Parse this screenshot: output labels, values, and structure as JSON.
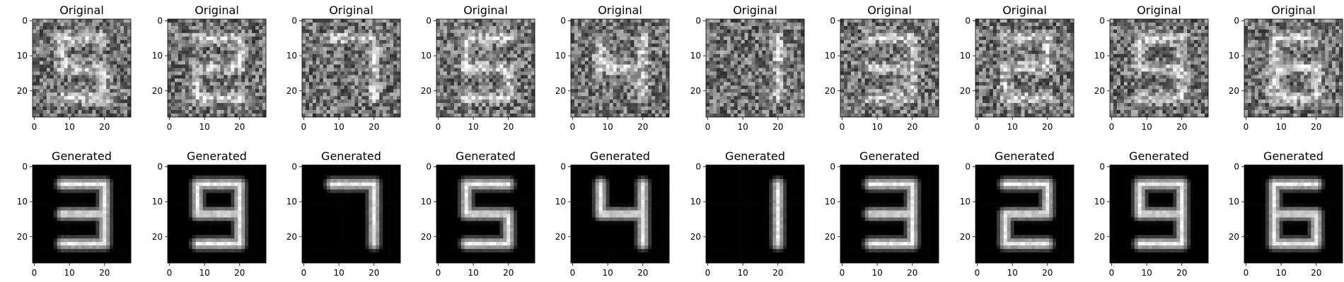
{
  "chart_data": {
    "type": "heatmap",
    "description_rows": [
      "original",
      "generated"
    ],
    "row_titles": [
      "Original",
      "Generated"
    ],
    "panel_count": 10,
    "image_size": [
      28,
      28
    ],
    "colormap": "gray",
    "xticks": [
      0,
      10,
      20
    ],
    "yticks": [
      0,
      10,
      20
    ],
    "xlim": [
      -0.5,
      27.5
    ],
    "ylim": [
      27.5,
      -0.5
    ],
    "generated_digits": [
      "3",
      "9",
      "7",
      "5",
      "4",
      "1",
      "3",
      "2",
      "9",
      "6"
    ],
    "original_digits": [
      "5",
      "2",
      "7",
      "5",
      "4",
      "1",
      "3",
      "2",
      "9",
      "6"
    ],
    "original_noise": "heavy",
    "original_background_gray": 0.45
  }
}
